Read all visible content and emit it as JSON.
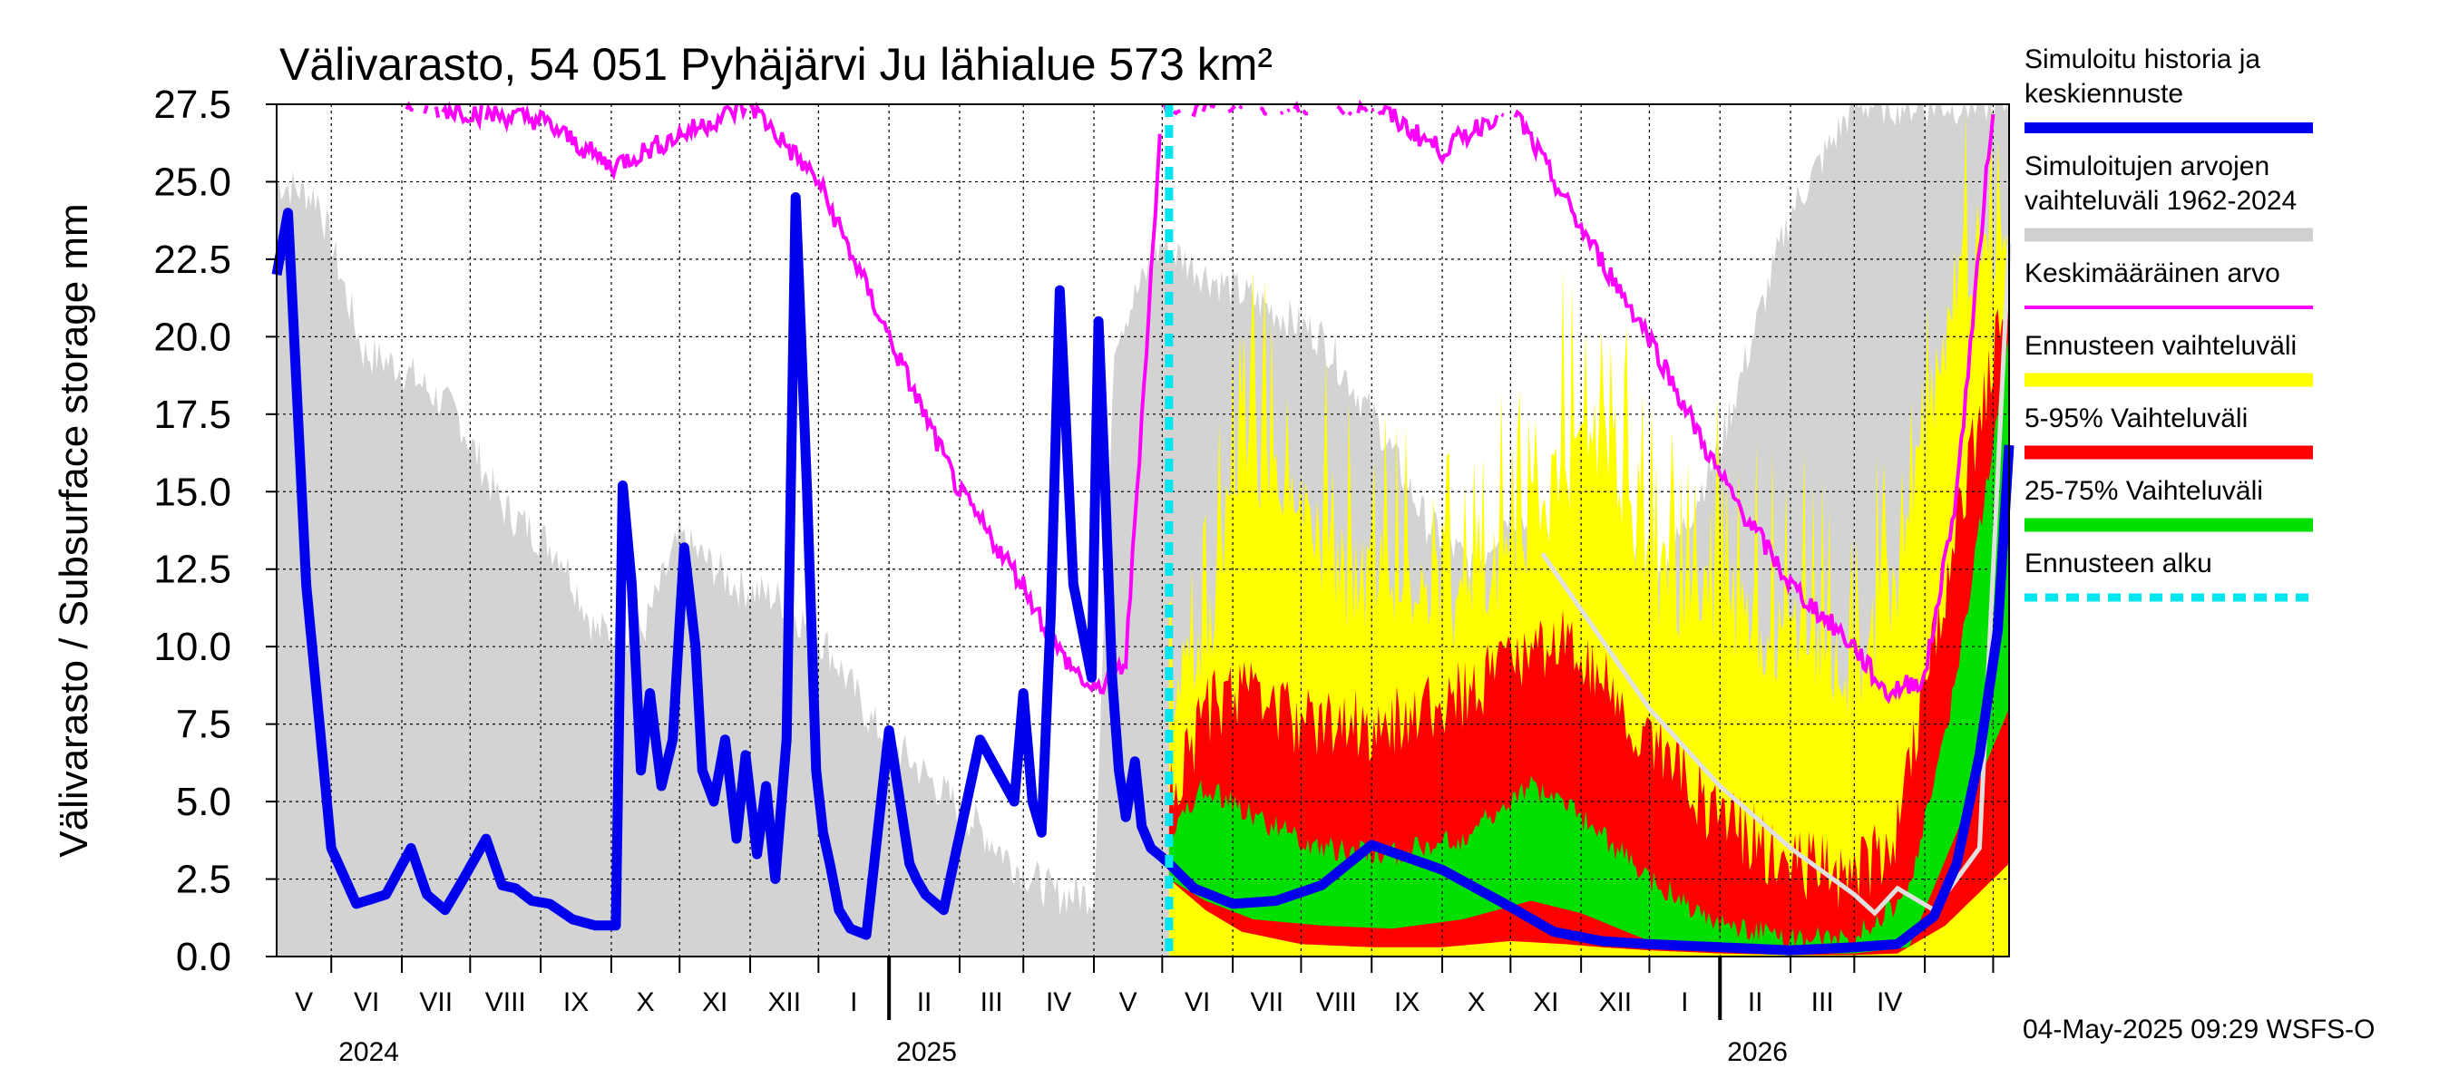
{
  "chart_data": {
    "type": "area",
    "title": "Välivarasto, 54 051 Pyhäjärvi Ju lähialue 573 km²",
    "ylabel": "Välivarasto / Subsurface storage  mm",
    "ylim": [
      0,
      27.5
    ],
    "yticks": [
      "0.0",
      "2.5",
      "5.0",
      "7.5",
      "10.0",
      "12.5",
      "15.0",
      "17.5",
      "20.0",
      "22.5",
      "25.0",
      "27.5"
    ],
    "x_range": [
      "2024-04-07",
      "2026-05-08"
    ],
    "grid": true,
    "legend_position": "right",
    "forecast_start": "2025-05-04",
    "months": [
      "V",
      "VI",
      "VII",
      "VIII",
      "IX",
      "X",
      "XI",
      "XII",
      "I",
      "II",
      "III",
      "IV",
      "V",
      "VI",
      "VII",
      "VIII",
      "IX",
      "X",
      "XI",
      "XII",
      "I",
      "II",
      "III",
      "IV"
    ],
    "years": [
      "2024",
      "2025",
      "2026"
    ],
    "legend": [
      {
        "label": "Simuloitu historia ja keskiennuste",
        "color": "#0000ee",
        "style": "thick"
      },
      {
        "label": "Simuloitujen arvojen vaihteluväli 1962-2024",
        "color": "#d0d0d0",
        "style": "band"
      },
      {
        "label": "Keskimääräinen arvo",
        "color": "#ff00ff",
        "style": "line"
      },
      {
        "label": "Ennusteen vaihteluväli",
        "color": "#ffff00",
        "style": "band"
      },
      {
        "label": "5-95% Vaihteluväli",
        "color": "#ff0000",
        "style": "band"
      },
      {
        "label": "25-75% Vaihteluväli",
        "color": "#00e000",
        "style": "band"
      },
      {
        "label": "Ennusteen alku",
        "color": "#00e5ee",
        "style": "dashed"
      }
    ],
    "series": [
      {
        "name": "Simuloitu historia ja keskiennuste",
        "x": [
          "2024-04-07",
          "2024-04-12",
          "2024-04-20",
          "2024-05-01",
          "2024-05-12",
          "2024-05-25",
          "2024-06-05",
          "2024-06-12",
          "2024-06-20",
          "2024-06-28",
          "2024-07-08",
          "2024-07-15",
          "2024-07-21",
          "2024-07-28",
          "2024-08-05",
          "2024-08-15",
          "2024-08-25",
          "2024-09-03",
          "2024-09-06",
          "2024-09-10",
          "2024-09-14",
          "2024-09-18",
          "2024-09-23",
          "2024-09-28",
          "2024-10-03",
          "2024-10-08",
          "2024-10-11",
          "2024-10-16",
          "2024-10-21",
          "2024-10-26",
          "2024-10-30",
          "2024-11-04",
          "2024-11-08",
          "2024-11-12",
          "2024-11-17",
          "2024-11-21",
          "2024-11-26",
          "2024-11-30",
          "2024-12-03",
          "2024-12-06",
          "2024-12-10",
          "2024-12-15",
          "2024-12-22",
          "2025-01-01",
          "2025-01-10",
          "2025-01-13",
          "2025-01-17",
          "2025-01-25",
          "2025-02-10",
          "2025-02-25",
          "2025-03-01",
          "2025-03-05",
          "2025-03-09",
          "2025-03-13",
          "2025-03-17",
          "2025-03-23",
          "2025-03-31",
          "2025-04-03",
          "2025-04-06",
          "2025-04-09",
          "2025-04-12",
          "2025-04-15",
          "2025-04-19",
          "2025-04-22",
          "2025-04-26",
          "2025-05-01",
          "2025-05-04",
          "2025-05-15",
          "2025-06-01",
          "2025-06-20",
          "2025-07-10",
          "2025-08-01",
          "2025-09-01",
          "2025-10-01",
          "2025-10-20",
          "2025-11-10",
          "2025-12-01",
          "2026-01-01",
          "2026-02-01",
          "2026-03-01",
          "2026-03-20",
          "2026-04-05",
          "2026-04-15",
          "2026-04-25",
          "2026-05-03",
          "2026-05-08"
        ],
        "values": [
          22.0,
          24.0,
          12.0,
          3.5,
          1.7,
          2.0,
          3.5,
          2.0,
          1.5,
          2.5,
          3.8,
          2.3,
          2.2,
          1.8,
          1.7,
          1.2,
          1.0,
          1.0,
          15.2,
          12.0,
          6.0,
          8.5,
          5.5,
          7.0,
          13.2,
          10.0,
          6.0,
          5.0,
          7.0,
          3.8,
          6.5,
          3.3,
          5.5,
          2.5,
          7.0,
          24.5,
          15.0,
          6.0,
          4.0,
          3.0,
          1.5,
          0.9,
          0.7,
          7.3,
          3.0,
          2.5,
          2.0,
          1.5,
          7.0,
          5.0,
          8.5,
          5.0,
          4.0,
          11.0,
          21.5,
          12.0,
          9.0,
          20.5,
          15.0,
          9.0,
          6.0,
          4.5,
          6.3,
          4.2,
          3.5,
          3.2,
          3.0,
          2.2,
          1.7,
          1.8,
          2.3,
          3.6,
          2.8,
          1.6,
          0.8,
          0.5,
          0.4,
          0.3,
          0.2,
          0.3,
          0.4,
          1.3,
          3.0,
          6.5,
          10.5,
          16.5
        ]
      },
      {
        "name": "Keskimääräinen arvo",
        "x": [
          "2024-06-01",
          "2024-08-01",
          "2024-09-01",
          "2024-10-01",
          "2024-11-01",
          "2024-12-01",
          "2025-01-01",
          "2025-02-01",
          "2025-03-01",
          "2025-03-15",
          "2025-04-01",
          "2025-04-15",
          "2025-05-01",
          "2025-06-01",
          "2025-08-01",
          "2025-09-01",
          "2025-10-01",
          "2025-11-01",
          "2025-12-01",
          "2026-01-01",
          "2026-02-01",
          "2026-03-01",
          "2026-03-15",
          "2026-04-01",
          "2026-04-15",
          "2026-05-01"
        ],
        "values": [
          27.5,
          27.0,
          25.5,
          26.5,
          27.5,
          25.0,
          20.0,
          15.0,
          12.0,
          10.0,
          8.5,
          9.5,
          27.5,
          27.5,
          27.5,
          26.0,
          27.5,
          23.5,
          20.0,
          15.5,
          12.0,
          10.0,
          8.5,
          9.0,
          15.0,
          27.5
        ]
      }
    ]
  }
}
